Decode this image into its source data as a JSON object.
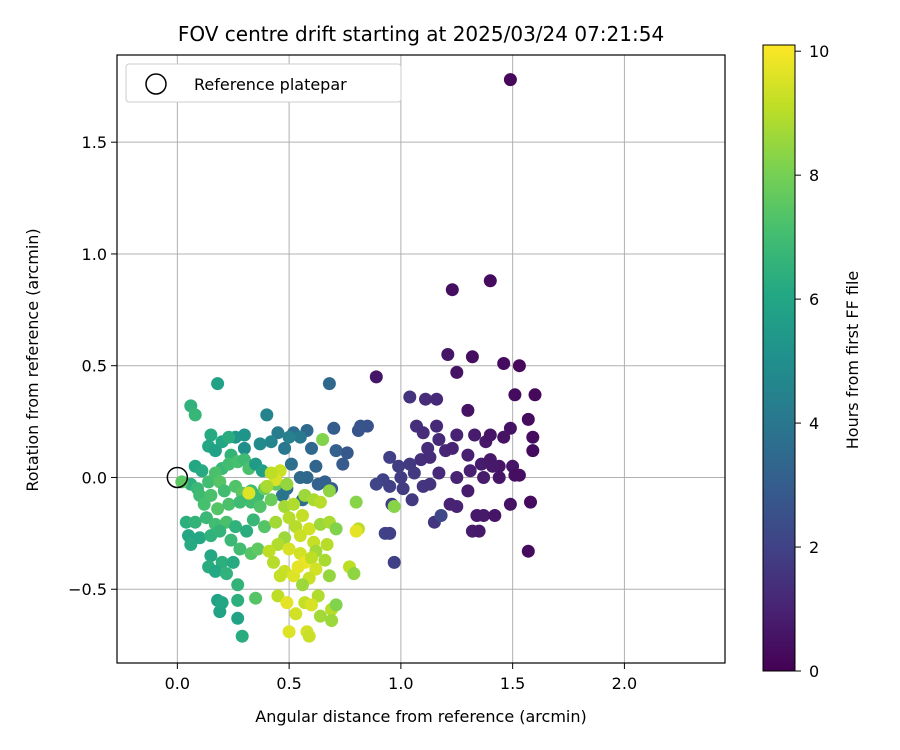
{
  "chart_data": {
    "type": "scatter",
    "title": "FOV centre drift starting at 2025/03/24 07:21:54",
    "xlabel": "Angular distance from reference (arcmin)",
    "ylabel": "Rotation from reference (arcmin)",
    "xlim": [
      -0.27,
      2.45
    ],
    "ylim": [
      -0.83,
      1.89
    ],
    "xticks": [
      0.0,
      0.5,
      1.0,
      1.5,
      2.0
    ],
    "xtick_labels": [
      "0.0",
      "0.5",
      "1.0",
      "1.5",
      "2.0"
    ],
    "yticks": [
      -0.5,
      0.0,
      0.5,
      1.0,
      1.5
    ],
    "ytick_labels": [
      "−0.5",
      "0.0",
      "0.5",
      "1.0",
      "1.5"
    ],
    "grid": true,
    "legend": {
      "position": "top-left",
      "entries": [
        "Reference platepar"
      ]
    },
    "reference_point": {
      "x": 0.0,
      "y": 0.0,
      "label": "Reference platepar"
    },
    "colorbar": {
      "label": "Hours from first FF file",
      "min": 0,
      "max": 10.1,
      "ticks": [
        0,
        2,
        4,
        6,
        8,
        10
      ],
      "tick_labels": [
        "0",
        "2",
        "4",
        "6",
        "8",
        "10"
      ],
      "colormap": "viridis"
    },
    "points": [
      [
        1.49,
        1.78,
        0.2
      ],
      [
        1.23,
        0.84,
        0.4
      ],
      [
        1.4,
        0.88,
        0.3
      ],
      [
        1.21,
        0.55,
        0.6
      ],
      [
        1.25,
        0.47,
        0.5
      ],
      [
        1.32,
        0.54,
        0.4
      ],
      [
        1.46,
        0.51,
        0.3
      ],
      [
        1.53,
        0.5,
        0.2
      ],
      [
        1.6,
        0.37,
        0.2
      ],
      [
        1.51,
        0.37,
        0.3
      ],
      [
        1.3,
        0.3,
        0.5
      ],
      [
        1.04,
        0.36,
        1.5
      ],
      [
        1.11,
        0.35,
        1.3
      ],
      [
        1.16,
        0.35,
        1.2
      ],
      [
        1.57,
        0.26,
        0.3
      ],
      [
        1.07,
        0.23,
        1.4
      ],
      [
        1.16,
        0.23,
        1.2
      ],
      [
        1.1,
        0.2,
        1.3
      ],
      [
        1.17,
        0.17,
        1.2
      ],
      [
        1.25,
        0.19,
        1.0
      ],
      [
        1.33,
        0.19,
        0.8
      ],
      [
        1.38,
        0.16,
        0.7
      ],
      [
        1.4,
        0.19,
        0.6
      ],
      [
        1.46,
        0.18,
        0.5
      ],
      [
        1.49,
        0.22,
        0.5
      ],
      [
        1.59,
        0.18,
        0.3
      ],
      [
        1.59,
        0.12,
        0.3
      ],
      [
        1.12,
        0.13,
        1.3
      ],
      [
        1.2,
        0.12,
        1.1
      ],
      [
        1.23,
        0.13,
        1.0
      ],
      [
        1.3,
        0.1,
        0.9
      ],
      [
        1.36,
        0.06,
        0.8
      ],
      [
        1.4,
        0.08,
        0.7
      ],
      [
        1.44,
        0.05,
        0.6
      ],
      [
        1.5,
        0.05,
        0.6
      ],
      [
        1.51,
        0.01,
        0.4
      ],
      [
        1.53,
        0.01,
        0.4
      ],
      [
        1.09,
        0.08,
        1.4
      ],
      [
        1.13,
        0.09,
        1.3
      ],
      [
        1.17,
        0.02,
        1.2
      ],
      [
        1.25,
        0.0,
        1.0
      ],
      [
        1.31,
        0.03,
        0.9
      ],
      [
        1.37,
        0.0,
        0.8
      ],
      [
        1.41,
        0.05,
        0.7
      ],
      [
        1.44,
        0.0,
        0.6
      ],
      [
        0.89,
        0.45,
        0.6
      ],
      [
        0.95,
        0.09,
        1.9
      ],
      [
        0.99,
        0.05,
        1.8
      ],
      [
        1.04,
        0.06,
        1.7
      ],
      [
        1.0,
        0.0,
        1.8
      ],
      [
        0.92,
        -0.01,
        2.0
      ],
      [
        0.95,
        -0.04,
        1.9
      ],
      [
        1.01,
        -0.05,
        1.8
      ],
      [
        1.06,
        0.02,
        1.7
      ],
      [
        1.1,
        -0.04,
        1.6
      ],
      [
        1.05,
        -0.1,
        1.7
      ],
      [
        0.96,
        -0.12,
        1.9
      ],
      [
        0.89,
        -0.03,
        2.1
      ],
      [
        1.15,
        -0.2,
        1.6
      ],
      [
        1.18,
        -0.17,
        2.2
      ],
      [
        1.13,
        -0.03,
        1.5
      ],
      [
        1.22,
        -0.12,
        1.0
      ],
      [
        1.25,
        -0.13,
        1.0
      ],
      [
        1.3,
        -0.06,
        0.8
      ],
      [
        1.34,
        -0.17,
        0.7
      ],
      [
        1.37,
        -0.17,
        0.7
      ],
      [
        1.42,
        -0.17,
        0.6
      ],
      [
        1.49,
        -0.12,
        0.5
      ],
      [
        1.58,
        -0.11,
        0.3
      ],
      [
        1.32,
        -0.24,
        0.8
      ],
      [
        1.35,
        -0.24,
        0.7
      ],
      [
        1.57,
        -0.33,
        0.3
      ],
      [
        0.93,
        -0.25,
        2.0
      ],
      [
        0.95,
        -0.25,
        1.9
      ],
      [
        0.97,
        -0.38,
        1.9
      ],
      [
        0.85,
        0.23,
        2.6
      ],
      [
        0.81,
        0.21,
        2.7
      ],
      [
        0.82,
        0.23,
        2.7
      ],
      [
        0.76,
        0.11,
        2.8
      ],
      [
        0.74,
        0.06,
        2.9
      ],
      [
        0.7,
        0.22,
        3.0
      ],
      [
        0.68,
        0.42,
        3.4
      ],
      [
        0.71,
        0.12,
        3.1
      ],
      [
        0.62,
        0.05,
        3.3
      ],
      [
        0.6,
        0.13,
        3.4
      ],
      [
        0.58,
        0.21,
        3.5
      ],
      [
        0.52,
        0.2,
        3.6
      ],
      [
        0.51,
        0.06,
        3.7
      ],
      [
        0.55,
        0.18,
        4.1
      ],
      [
        0.48,
        0.13,
        4.0
      ],
      [
        0.4,
        0.28,
        4.5
      ],
      [
        0.45,
        0.2,
        4.2
      ],
      [
        0.5,
        0.18,
        4.4
      ],
      [
        0.42,
        0.16,
        4.6
      ],
      [
        0.37,
        0.15,
        4.8
      ],
      [
        0.3,
        0.13,
        5.0
      ],
      [
        0.3,
        0.19,
        5.2
      ],
      [
        0.26,
        0.18,
        5.3
      ],
      [
        0.69,
        -0.05,
        2.9
      ],
      [
        0.66,
        -0.02,
        3.1
      ],
      [
        0.63,
        -0.03,
        3.2
      ],
      [
        0.58,
        0.0,
        3.4
      ],
      [
        0.55,
        0.0,
        3.5
      ],
      [
        0.56,
        -0.1,
        3.6
      ],
      [
        0.49,
        -0.05,
        3.7
      ],
      [
        0.47,
        -0.08,
        3.9
      ],
      [
        0.18,
        0.42,
        5.8
      ],
      [
        0.06,
        0.32,
        6.5
      ],
      [
        0.08,
        0.28,
        6.7
      ],
      [
        0.15,
        0.19,
        6.2
      ],
      [
        0.14,
        0.14,
        6.0
      ],
      [
        0.17,
        0.12,
        5.8
      ],
      [
        0.2,
        0.16,
        6.0
      ],
      [
        0.23,
        0.18,
        6.3
      ],
      [
        0.24,
        0.1,
        6.6
      ],
      [
        0.2,
        0.04,
        6.8
      ],
      [
        0.23,
        0.06,
        7.0
      ],
      [
        0.27,
        0.07,
        7.1
      ],
      [
        0.3,
        0.08,
        6.9
      ],
      [
        0.32,
        0.04,
        7.2
      ],
      [
        0.35,
        0.06,
        5.5
      ],
      [
        0.38,
        0.03,
        5.7
      ],
      [
        0.08,
        0.05,
        6.0
      ],
      [
        0.11,
        0.03,
        6.2
      ],
      [
        0.06,
        -0.03,
        6.4
      ],
      [
        0.09,
        -0.05,
        6.8
      ],
      [
        0.14,
        -0.02,
        7.0
      ],
      [
        0.17,
        0.02,
        7.2
      ],
      [
        0.19,
        -0.02,
        7.4
      ],
      [
        0.02,
        -0.02,
        7.5
      ],
      [
        0.1,
        -0.08,
        6.9
      ],
      [
        0.15,
        -0.08,
        7.2
      ],
      [
        0.21,
        -0.06,
        7.0
      ],
      [
        0.26,
        -0.04,
        7.3
      ],
      [
        0.29,
        -0.07,
        7.5
      ],
      [
        0.33,
        -0.06,
        7.0
      ],
      [
        0.36,
        -0.08,
        6.8
      ],
      [
        0.39,
        -0.05,
        7.8
      ],
      [
        0.44,
        -0.03,
        7.6
      ],
      [
        0.12,
        -0.12,
        7.1
      ],
      [
        0.18,
        -0.14,
        7.4
      ],
      [
        0.23,
        -0.12,
        7.2
      ],
      [
        0.28,
        -0.11,
        6.9
      ],
      [
        0.33,
        -0.11,
        7.0
      ],
      [
        0.37,
        -0.13,
        7.3
      ],
      [
        0.42,
        -0.1,
        7.8
      ],
      [
        0.04,
        -0.2,
        6.4
      ],
      [
        0.08,
        -0.2,
        6.6
      ],
      [
        0.13,
        -0.18,
        6.8
      ],
      [
        0.17,
        -0.21,
        7.0
      ],
      [
        0.22,
        -0.2,
        7.2
      ],
      [
        0.26,
        -0.22,
        6.5
      ],
      [
        0.31,
        -0.24,
        6.3
      ],
      [
        0.34,
        -0.19,
        6.7
      ],
      [
        0.39,
        -0.22,
        7.4
      ],
      [
        0.05,
        -0.26,
        6.0
      ],
      [
        0.06,
        -0.3,
        6.2
      ],
      [
        0.1,
        -0.27,
        6.1
      ],
      [
        0.15,
        -0.26,
        6.5
      ],
      [
        0.19,
        -0.24,
        6.6
      ],
      [
        0.24,
        -0.28,
        6.8
      ],
      [
        0.28,
        -0.32,
        7.0
      ],
      [
        0.33,
        -0.34,
        7.4
      ],
      [
        0.36,
        -0.32,
        7.6
      ],
      [
        0.15,
        -0.35,
        6.1
      ],
      [
        0.2,
        -0.38,
        6.4
      ],
      [
        0.25,
        -0.38,
        6.2
      ],
      [
        0.14,
        -0.4,
        6.3
      ],
      [
        0.17,
        -0.42,
        6.1
      ],
      [
        0.22,
        -0.43,
        6.5
      ],
      [
        0.27,
        -0.48,
        6.6
      ],
      [
        0.18,
        -0.55,
        5.8
      ],
      [
        0.19,
        -0.6,
        5.9
      ],
      [
        0.2,
        -0.56,
        6.0
      ],
      [
        0.27,
        -0.55,
        6.4
      ],
      [
        0.27,
        -0.63,
        5.9
      ],
      [
        0.29,
        -0.71,
        6.3
      ],
      [
        0.35,
        -0.54,
        7.4
      ],
      [
        0.57,
        -0.08,
        8.6
      ],
      [
        0.61,
        -0.1,
        8.8
      ],
      [
        0.64,
        -0.11,
        9.0
      ],
      [
        0.48,
        -0.13,
        8.7
      ],
      [
        0.52,
        -0.12,
        8.9
      ],
      [
        0.56,
        -0.17,
        9.2
      ],
      [
        0.44,
        -0.2,
        8.7
      ],
      [
        0.5,
        -0.18,
        9.0
      ],
      [
        0.46,
        0.03,
        9.3
      ],
      [
        0.44,
        -0.01,
        9.5
      ],
      [
        0.42,
        0.02,
        9.1
      ],
      [
        0.4,
        -0.04,
        8.8
      ],
      [
        0.32,
        -0.07,
        9.6
      ],
      [
        0.49,
        -0.03,
        8.5
      ],
      [
        0.53,
        -0.22,
        9.0
      ],
      [
        0.59,
        -0.23,
        9.4
      ],
      [
        0.64,
        -0.21,
        8.6
      ],
      [
        0.68,
        -0.2,
        8.8
      ],
      [
        0.61,
        -0.29,
        9.2
      ],
      [
        0.55,
        -0.26,
        9.3
      ],
      [
        0.48,
        -0.27,
        8.6
      ],
      [
        0.45,
        -0.3,
        8.9
      ],
      [
        0.41,
        -0.33,
        9.1
      ],
      [
        0.5,
        -0.32,
        9.5
      ],
      [
        0.55,
        -0.34,
        9.4
      ],
      [
        0.62,
        -0.33,
        8.7
      ],
      [
        0.67,
        -0.3,
        9.0
      ],
      [
        0.43,
        -0.38,
        9.0
      ],
      [
        0.48,
        -0.42,
        9.3
      ],
      [
        0.52,
        -0.44,
        9.6
      ],
      [
        0.57,
        -0.38,
        9.8
      ],
      [
        0.6,
        -0.36,
        9.1
      ],
      [
        0.66,
        -0.37,
        8.8
      ],
      [
        0.62,
        -0.41,
        9.4
      ],
      [
        0.54,
        -0.4,
        9.7
      ],
      [
        0.46,
        -0.44,
        9.2
      ],
      [
        0.45,
        -0.53,
        9.1
      ],
      [
        0.49,
        -0.56,
        9.7
      ],
      [
        0.59,
        -0.45,
        9.3
      ],
      [
        0.56,
        -0.48,
        8.6
      ],
      [
        0.68,
        -0.44,
        8.5
      ],
      [
        0.63,
        -0.53,
        8.9
      ],
      [
        0.57,
        -0.56,
        9.2
      ],
      [
        0.53,
        -0.61,
        9.4
      ],
      [
        0.64,
        -0.62,
        8.7
      ],
      [
        0.69,
        -0.59,
        9.0
      ],
      [
        0.69,
        -0.64,
        8.6
      ],
      [
        0.71,
        -0.57,
        8.2
      ],
      [
        0.5,
        -0.69,
        9.6
      ],
      [
        0.58,
        -0.69,
        9.4
      ],
      [
        0.59,
        -0.71,
        9.3
      ],
      [
        0.6,
        -0.57,
        9.5
      ],
      [
        0.65,
        0.17,
        8.2
      ],
      [
        0.68,
        -0.06,
        8.4
      ],
      [
        0.71,
        -0.23,
        8.2
      ],
      [
        0.8,
        -0.11,
        8.3
      ],
      [
        0.81,
        -0.23,
        9.0
      ],
      [
        0.8,
        -0.24,
        9.7
      ],
      [
        0.77,
        -0.4,
        9.1
      ],
      [
        0.79,
        -0.43,
        8.4
      ],
      [
        0.97,
        -0.13,
        8.3
      ]
    ]
  }
}
